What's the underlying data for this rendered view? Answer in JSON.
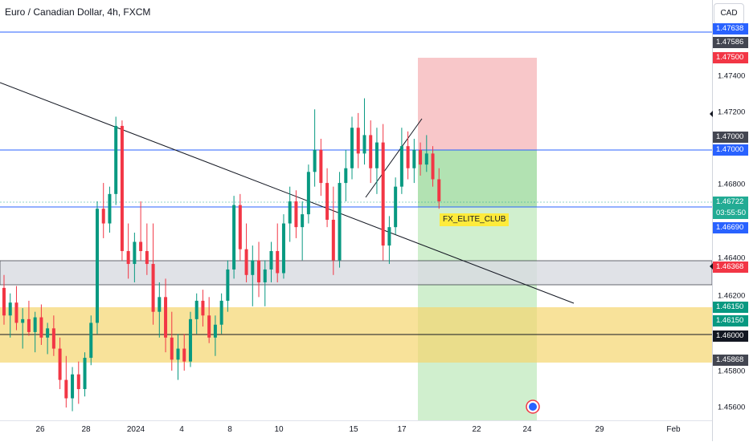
{
  "title": "Euro / Canadian Dollar, 4h, FXCM",
  "currency_button": "CAD",
  "watermark": "FX_ELITE_CLUB",
  "price_ticks": [
    "1.47400",
    "1.47200",
    "1.46800",
    "1.46400",
    "1.46200",
    "1.45800",
    "1.45600"
  ],
  "price_tags": [
    {
      "label": "1.47638",
      "color": "#2962ff",
      "name": "tag-upper-line"
    },
    {
      "label": "1.47586",
      "color": "#434651",
      "name": "tag-gray-1"
    },
    {
      "label": "1.47500",
      "color": "#f23645",
      "name": "tag-stop-loss"
    },
    {
      "label": "1.47000",
      "color": "#434651",
      "name": "tag-gray-2"
    },
    {
      "label": "1.47000",
      "color": "#2962ff",
      "name": "tag-entry-line"
    },
    {
      "label": "1.46722",
      "color": "#22ab94",
      "name": "tag-current-price"
    },
    {
      "label": "03:55:50",
      "color": "#22ab94",
      "name": "tag-countdown"
    },
    {
      "label": "1.46690",
      "color": "#2962ff",
      "name": "tag-lower-line"
    },
    {
      "label": "1.46368",
      "color": "#f23645",
      "name": "tag-zone-red"
    },
    {
      "label": "1.46150",
      "color": "#089981",
      "name": "tag-zone-green-1"
    },
    {
      "label": "1.46150",
      "color": "#089981",
      "name": "tag-zone-green-2"
    },
    {
      "label": "1.46000",
      "color": "#131722",
      "name": "tag-black-line"
    },
    {
      "label": "1.45868",
      "color": "#434651",
      "name": "tag-gray-3"
    }
  ],
  "time_ticks": [
    "26",
    "28",
    "2024",
    "4",
    "8",
    "10",
    "15",
    "17",
    "22",
    "24",
    "29",
    "Feb"
  ],
  "colors": {
    "up": "#089981",
    "down": "#f23645",
    "stop_zone": "#f7c1c3",
    "target_zone": "#c8ecc6",
    "support_zone": "#f5d56f",
    "gray_zone": "#d9dbe2",
    "blue_line": "#2962ff"
  },
  "chart_data": {
    "type": "candlestick",
    "symbol": "EUR/CAD",
    "timeframe": "4h",
    "horizontal_levels": [
      1.47638,
      1.47,
      1.4669,
      1.46
    ],
    "zones": [
      {
        "label": "resistance-gray",
        "from": 1.46268,
        "to": 1.46368
      },
      {
        "label": "support-yellow",
        "from": 1.45868,
        "to": 1.4615
      }
    ],
    "position": {
      "side": "short",
      "entry": 1.47,
      "stop": 1.475,
      "target_zone_color": "green"
    },
    "last_price": 1.46722
  }
}
